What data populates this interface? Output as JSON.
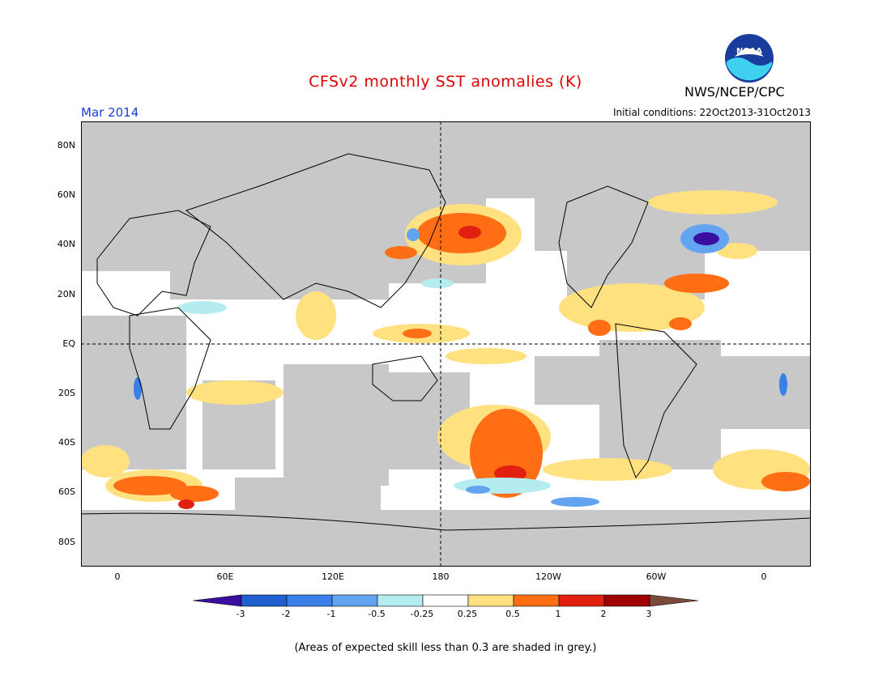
{
  "title": "CFSv2 monthly SST anomalies (K)",
  "period": "Mar 2014",
  "agency": "NWS/NCEP/CPC",
  "logo_text": "NOAA",
  "initial_conditions": "Initial conditions: 22Oct2013-31Oct2013",
  "note": "(Areas of expected skill less than 0.3 are shaded in grey.)",
  "lat_labels": [
    "80N",
    "60N",
    "40N",
    "20N",
    "EQ",
    "20S",
    "40S",
    "60S",
    "80S"
  ],
  "lon_labels": [
    "0",
    "60E",
    "120E",
    "180",
    "120W",
    "60W",
    "0"
  ],
  "colorbar": {
    "ticks": [
      "-3",
      "-2",
      "-1",
      "-0.5",
      "-0.25",
      "0.25",
      "0.5",
      "1",
      "2",
      "3"
    ],
    "colors": [
      "#3a0fa0",
      "#1f5fd0",
      "#3b7fe8",
      "#62a4f0",
      "#b4ecf0",
      "#ffffff",
      "#ffe180",
      "#ff6e14",
      "#e22010",
      "#a00000",
      "#7a4a3a"
    ]
  },
  "colors": {
    "skill_mask": "#c8c8c8",
    "title": "#e00000",
    "period": "#1a3cdc"
  }
}
